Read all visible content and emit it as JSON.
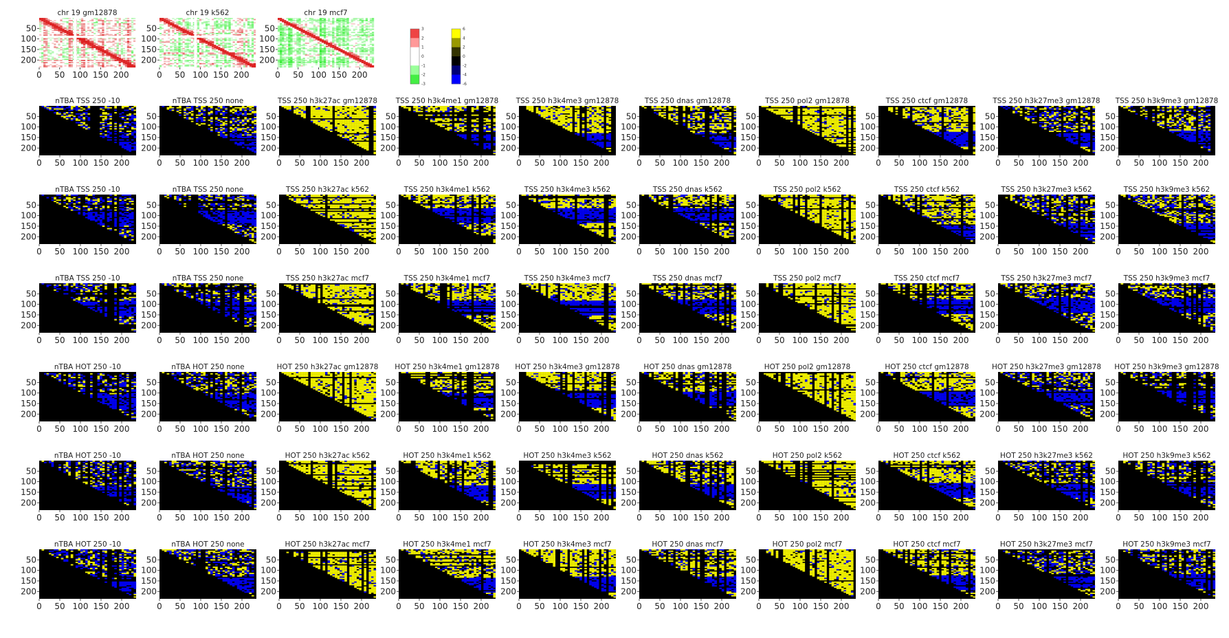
{
  "figure": {
    "colors": {
      "top_diverging": [
        "#33ee33",
        "#ffffff",
        "#dd2222"
      ],
      "bottom_map": [
        "#0000ee",
        "#000000",
        "#eeee00"
      ]
    }
  },
  "chart_data": [
    {
      "type": "heatmap",
      "group": "chromosome_maps",
      "axis_ticks": [
        "0",
        "50",
        "100",
        "150",
        "200"
      ],
      "y_ticks": [
        "50",
        "100",
        "150",
        "200"
      ],
      "xlim": [
        0,
        235
      ],
      "ylim": [
        0,
        235
      ],
      "panels": [
        {
          "title": "chr 19 gm12878",
          "cmap": "diverging",
          "seed": 11,
          "bias": 0.2
        },
        {
          "title": "chr 19 k562",
          "cmap": "diverging",
          "seed": 23,
          "bias": -0.1
        },
        {
          "title": "chr 19 mcf7",
          "cmap": "diverging",
          "seed": 37,
          "bias": -0.4
        }
      ]
    },
    {
      "type": "heatmap",
      "group": "colorbars",
      "colorbars": [
        {
          "name": "diverging",
          "labels": [
            "3",
            "2",
            "1",
            "0",
            "-1",
            "-2",
            "-3"
          ],
          "range": [
            -3,
            3
          ]
        },
        {
          "name": "blue_black_yellow",
          "labels": [
            "6",
            "4",
            "2",
            "0",
            "-2",
            "-4",
            "-6"
          ],
          "range": [
            -6,
            6
          ]
        }
      ]
    },
    {
      "type": "heatmap",
      "group": "feature_grid",
      "axis_ticks": [
        "0",
        "50",
        "100",
        "150",
        "200"
      ],
      "y_ticks": [
        "50",
        "100",
        "150",
        "200"
      ],
      "xlim": [
        0,
        235
      ],
      "ylim": [
        0,
        235
      ],
      "rows": [
        [
          "nTBA TSS 250 -10",
          "nTBA TSS 250 none",
          "TSS 250 h3k27ac gm12878",
          "TSS 250 h3k4me1 gm12878",
          "TSS 250 h3k4me3 gm12878",
          "TSS 250 dnas gm12878",
          "TSS 250 pol2 gm12878",
          "TSS 250 ctcf gm12878",
          "TSS 250 h3k27me3 gm12878",
          "TSS 250 h3k9me3 gm12878"
        ],
        [
          "nTBA TSS 250 -10",
          "nTBA TSS 250 none",
          "TSS 250 h3k27ac k562",
          "TSS 250 h3k4me1 k562",
          "TSS 250 h3k4me3 k562",
          "TSS 250 dnas k562",
          "TSS 250 pol2 k562",
          "TSS 250 ctcf k562",
          "TSS 250 h3k27me3 k562",
          "TSS 250 h3k9me3 k562"
        ],
        [
          "nTBA TSS 250 -10",
          "nTBA TSS 250 none",
          "TSS 250 h3k27ac mcf7",
          "TSS 250 h3k4me1 mcf7",
          "TSS 250 h3k4me3 mcf7",
          "TSS 250 dnas mcf7",
          "TSS 250 pol2 mcf7",
          "TSS 250 ctcf mcf7",
          "TSS 250 h3k27me3 mcf7",
          "TSS 250 h3k9me3 mcf7"
        ],
        [
          "nTBA HOT 250 -10",
          "nTBA HOT 250 none",
          "HOT 250 h3k27ac gm12878",
          "HOT 250 h3k4me1 gm12878",
          "HOT 250 h3k4me3 gm12878",
          "HOT 250 dnas gm12878",
          "HOT 250 pol2 gm12878",
          "HOT 250 ctcf gm12878",
          "HOT 250 h3k27me3 gm12878",
          "HOT 250 h3k9me3 gm12878"
        ],
        [
          "nTBA HOT 250 -10",
          "nTBA HOT 250 none",
          "HOT 250 h3k27ac k562",
          "HOT 250 h3k4me1 k562",
          "HOT 250 h3k4me3 k562",
          "HOT 250 dnas k562",
          "HOT 250 pol2 k562",
          "HOT 250 ctcf k562",
          "HOT 250 h3k27me3 k562",
          "HOT 250 h3k9me3 k562"
        ],
        [
          "nTBA HOT 250 -10",
          "nTBA HOT 250 none",
          "HOT 250 h3k27ac mcf7",
          "HOT 250 h3k4me1 mcf7",
          "HOT 250 h3k4me3 mcf7",
          "HOT 250 dnas mcf7",
          "HOT 250 pol2 mcf7",
          "HOT 250 ctcf mcf7",
          "HOT 250 h3k27me3 mcf7",
          "HOT 250 h3k9me3 mcf7"
        ]
      ],
      "column_yellow_fraction": [
        0.25,
        0.28,
        0.8,
        0.6,
        0.72,
        0.55,
        0.82,
        0.65,
        0.32,
        0.38
      ]
    }
  ]
}
